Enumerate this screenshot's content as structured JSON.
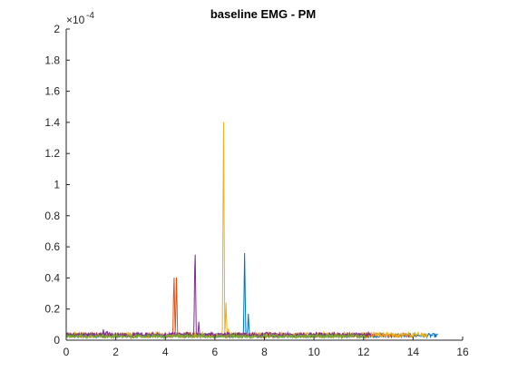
{
  "chart_data": {
    "type": "line",
    "title": "baseline EMG - PM",
    "xlabel": "",
    "ylabel": "",
    "xlim": [
      0,
      16
    ],
    "ylim": [
      0,
      0.0002
    ],
    "x_ticks": [
      0,
      2,
      4,
      6,
      8,
      10,
      12,
      14,
      16
    ],
    "y_ticks": [
      0,
      2e-05,
      4e-05,
      6e-05,
      8e-05,
      0.0001,
      0.00012,
      0.00014,
      0.00016,
      0.00018,
      0.0002
    ],
    "x_tick_labels": [
      "0",
      "2",
      "4",
      "6",
      "8",
      "10",
      "12",
      "14",
      "16"
    ],
    "y_tick_labels": [
      "0",
      "0.2",
      "0.4",
      "0.6",
      "0.8",
      "1",
      "1.2",
      "1.4",
      "1.6",
      "1.8",
      "2"
    ],
    "y_exponent_base": "×10",
    "y_exponent_power": "-4",
    "grid": false,
    "legend": "none",
    "series": [
      {
        "color": "#0072BD",
        "baseline": 3e-06,
        "x_end": 15.0,
        "peaks": [
          [
            7.2,
            5.6e-05
          ],
          [
            7.35,
            1.7e-05
          ]
        ]
      },
      {
        "color": "#D95319",
        "baseline": 3e-06,
        "x_end": 13.9,
        "peaks": [
          [
            4.35,
            4.5e-05
          ],
          [
            4.45,
            4.2e-05
          ]
        ]
      },
      {
        "color": "#EDB120",
        "baseline": 3.5e-06,
        "x_end": 14.6,
        "peaks": [
          [
            6.35,
            0.000143
          ],
          [
            6.45,
            2.5e-05
          ],
          [
            6.55,
            8e-06
          ]
        ]
      },
      {
        "color": "#7E2F8E",
        "baseline": 3.5e-06,
        "x_end": 12.3,
        "peaks": [
          [
            1.5,
            7.5e-06
          ],
          [
            1.65,
            7e-06
          ],
          [
            5.2,
            6.4e-05
          ],
          [
            5.35,
            1.2e-05
          ]
        ]
      },
      {
        "color": "#77AC30",
        "baseline": 2.5e-06,
        "x_end": 12.1,
        "peaks": []
      }
    ]
  },
  "colors": {
    "axis": "#262626",
    "background": "#ffffff"
  }
}
